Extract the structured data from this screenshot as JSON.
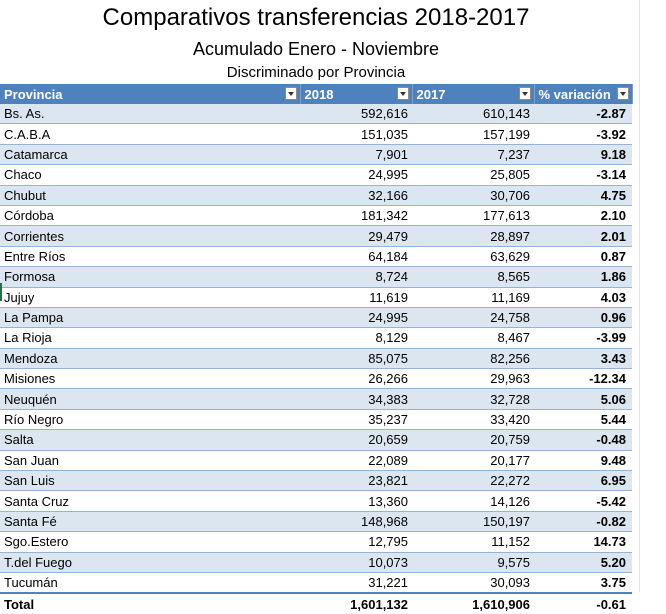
{
  "titles": {
    "main": "Comparativos transferencias 2018-2017",
    "sub": "Acumulado Enero - Noviembre",
    "sub2": "Discriminado por Provincia"
  },
  "columns": [
    "Provincia",
    "2018",
    "2017",
    "% variación"
  ],
  "rows": [
    [
      "Bs. As.",
      "592,616",
      "610,143",
      "-2.87"
    ],
    [
      "C.A.B.A",
      "151,035",
      "157,199",
      "-3.92"
    ],
    [
      "Catamarca",
      "7,901",
      "7,237",
      "9.18"
    ],
    [
      "Chaco",
      "24,995",
      "25,805",
      "-3.14"
    ],
    [
      "Chubut",
      "32,166",
      "30,706",
      "4.75"
    ],
    [
      "Córdoba",
      "181,342",
      "177,613",
      "2.10"
    ],
    [
      "Corrientes",
      "29,479",
      "28,897",
      "2.01"
    ],
    [
      "Entre Ríos",
      "64,184",
      "63,629",
      "0.87"
    ],
    [
      "Formosa",
      "8,724",
      "8,565",
      "1.86"
    ],
    [
      "Jujuy",
      "11,619",
      "11,169",
      "4.03"
    ],
    [
      "La Pampa",
      "24,995",
      "24,758",
      "0.96"
    ],
    [
      "La Rioja",
      "8,129",
      "8,467",
      "-3.99"
    ],
    [
      "Mendoza",
      "85,075",
      "82,256",
      "3.43"
    ],
    [
      "Misiones",
      "26,266",
      "29,963",
      "-12.34"
    ],
    [
      "Neuquén",
      "34,383",
      "32,728",
      "5.06"
    ],
    [
      "Río Negro",
      "35,237",
      "33,420",
      "5.44"
    ],
    [
      "Salta",
      "20,659",
      "20,759",
      "-0.48"
    ],
    [
      "San Juan",
      "22,089",
      "20,177",
      "9.48"
    ],
    [
      "San Luis",
      "23,821",
      "22,272",
      "6.95"
    ],
    [
      "Santa Cruz",
      "13,360",
      "14,126",
      "-5.42"
    ],
    [
      "Santa Fé",
      "148,968",
      "150,197",
      "-0.82"
    ],
    [
      "Sgo.Estero",
      "12,795",
      "11,152",
      "14.73"
    ],
    [
      "T.del Fuego",
      "10,073",
      "9,575",
      "5.20"
    ],
    [
      "Tucumán",
      "31,221",
      "30,093",
      "3.75"
    ]
  ],
  "total": [
    "Total",
    "1,601,132",
    "1,610,906",
    "-0.61"
  ],
  "colors": {
    "header_bg": "#4f81bd",
    "band": "#dce6f1"
  },
  "icons": {
    "filter": "dropdown-arrow-icon"
  }
}
